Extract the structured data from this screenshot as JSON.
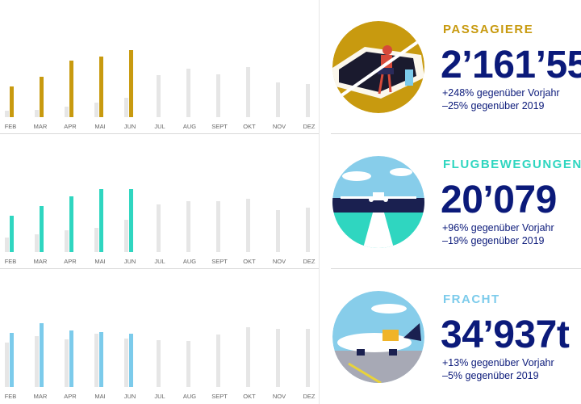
{
  "colors": {
    "passagiere": "#c89a0f",
    "flugbewegungen": "#2fd6c0",
    "fracht": "#7ccbeb",
    "prev_year": "#e6e6e6",
    "headline_navy": "#0b1a7a"
  },
  "panels": [
    {
      "id": "passagiere",
      "label": "PASSAGIERE",
      "big_number": "2’161’55",
      "delta_prev_year": "+248% gegenüber Vorjahr",
      "delta_2019": "–25% gegenüber 2019",
      "icon": "passenger-lounge-illustration"
    },
    {
      "id": "flugbewegungen",
      "label": "FLUGBEWEGUNGEN",
      "big_number": "20’079",
      "delta_prev_year": "+96% gegenüber Vorjahr",
      "delta_2019": "–19% gegenüber 2019",
      "icon": "runway-airplane-illustration"
    },
    {
      "id": "fracht",
      "label": "FRACHT",
      "big_number": "34’937t",
      "delta_prev_year": "+13% gegenüber Vorjahr",
      "delta_2019": "–5% gegenüber 2019",
      "icon": "cargo-plane-illustration"
    }
  ],
  "chart_data": [
    {
      "type": "bar",
      "categories": [
        "FEB",
        "MAR",
        "APR",
        "MAI",
        "JUN",
        "JUL",
        "AUG",
        "SEPT",
        "OKT",
        "NOV",
        "DEZ"
      ],
      "ylim": [
        0,
        100
      ],
      "series": [
        {
          "values": [
            8,
            9,
            13,
            18,
            24,
            null,
            null,
            null,
            null,
            null,
            null
          ]
        },
        {
          "values": [
            38,
            50,
            70,
            75,
            83,
            null,
            null,
            null,
            null,
            null,
            null
          ]
        },
        {
          "values": [
            null,
            null,
            null,
            null,
            null,
            52,
            60,
            53,
            62,
            43,
            41
          ]
        }
      ]
    },
    {
      "type": "bar",
      "categories": [
        "FEB",
        "MAR",
        "APR",
        "MAI",
        "JUN",
        "JUL",
        "AUG",
        "SEPT",
        "OKT",
        "NOV",
        "DEZ"
      ],
      "ylim": [
        0,
        100
      ],
      "series": [
        {
          "values": [
            18,
            22,
            27,
            30,
            40,
            null,
            null,
            null,
            null,
            null,
            null
          ]
        },
        {
          "values": [
            45,
            57,
            69,
            78,
            78,
            null,
            null,
            null,
            null,
            null,
            null
          ]
        },
        {
          "values": [
            null,
            null,
            null,
            null,
            null,
            59,
            63,
            63,
            66,
            52,
            55
          ]
        }
      ]
    },
    {
      "type": "bar",
      "categories": [
        "FEB",
        "MAR",
        "APR",
        "MAI",
        "JUN",
        "JUL",
        "AUG",
        "SEPT",
        "OKT",
        "NOV",
        "DEZ"
      ],
      "ylim": [
        0,
        100
      ],
      "series": [
        {
          "values": [
            55,
            63,
            59,
            66,
            60,
            null,
            null,
            null,
            null,
            null,
            null
          ]
        },
        {
          "values": [
            67,
            79,
            70,
            68,
            66,
            null,
            null,
            null,
            null,
            null,
            null
          ]
        },
        {
          "values": [
            null,
            null,
            null,
            null,
            null,
            58,
            57,
            65,
            74,
            72,
            72
          ]
        }
      ]
    }
  ]
}
